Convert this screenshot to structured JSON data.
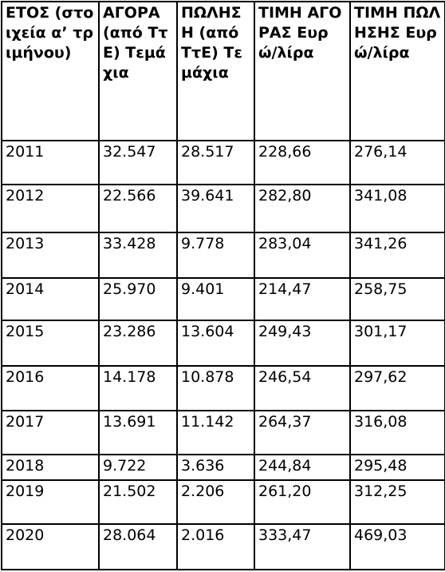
{
  "table": {
    "header": [
      "ΕΤΟΣ (στοιχεία α’ τριμήνου)",
      "ΑΓΟΡΑ (από ΤτΕ) Τεμάχια",
      "ΠΩΛΗΣΗ (από ΤτΕ) Τεμάχια",
      "ΤΙΜΗ ΑΓΟΡΑΣ Ευρώ/λίρα",
      "ΤΙΜΗ ΠΩΛΗΣΗΣ Ευρώ/λίρα"
    ],
    "rows": [
      [
        "2011",
        "32.547",
        "28.517",
        "228,66",
        "276,14"
      ],
      [
        "2012",
        "22.566",
        "39.641",
        "282,80",
        "341,08"
      ],
      [
        "2013",
        "33.428",
        "9.778",
        "283,04",
        "341,26"
      ],
      [
        "2014",
        "25.970",
        "9.401",
        "214,47",
        "258,75"
      ],
      [
        "2015",
        "23.286",
        "13.604",
        "249,43",
        "301,17"
      ],
      [
        "2016",
        "14.178",
        "10.878",
        "246,54",
        "297,62"
      ],
      [
        "2017",
        "13.691",
        "11.142",
        "264,37",
        "316,08"
      ],
      [
        "2018",
        "9.722",
        "3.636",
        "244,84",
        "295,48"
      ],
      [
        "2019",
        "21.502",
        "2.206",
        "261,20",
        "312,25"
      ],
      [
        "2020",
        "28.064",
        "2.016",
        "333,47",
        "469,03"
      ]
    ]
  }
}
